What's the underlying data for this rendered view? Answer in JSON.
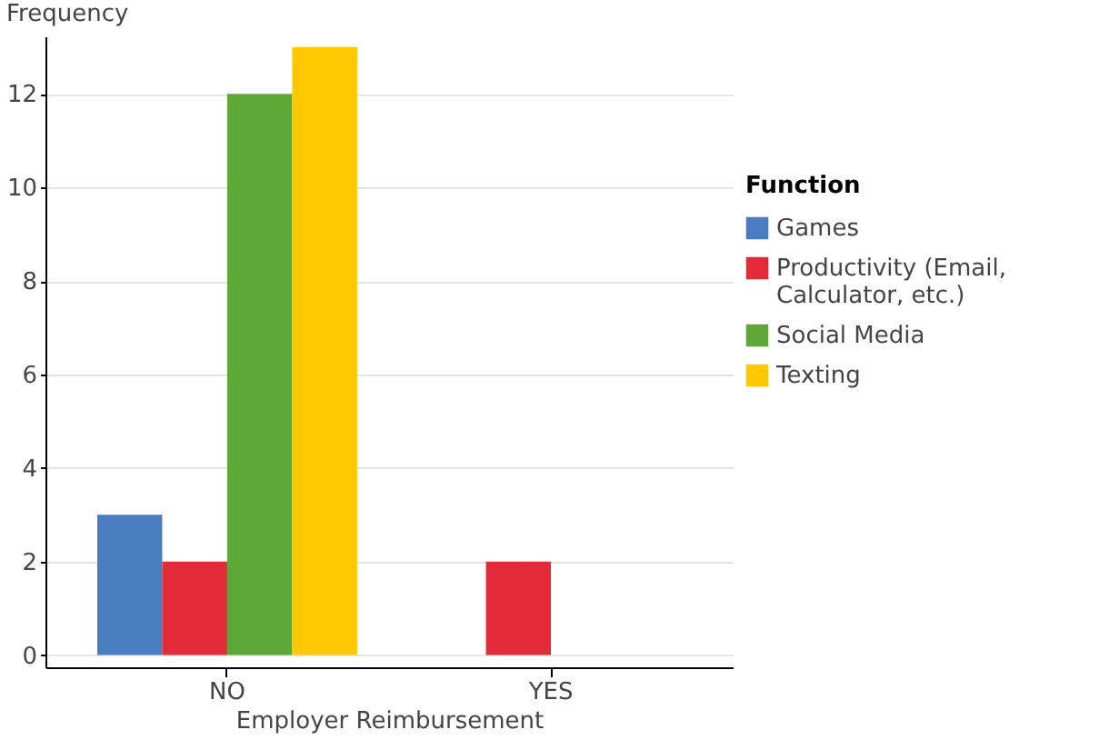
{
  "chart_data": {
    "type": "bar",
    "xlabel": "Employer Reimbursement",
    "ylabel": "Frequency",
    "legend_title": "Function",
    "categories": [
      "NO",
      "YES"
    ],
    "series": [
      {
        "name": "Games",
        "color": "#4a7cc2",
        "values": [
          3,
          null
        ]
      },
      {
        "name": "Productivity (Email, Calculator, etc.)",
        "color": "#e22a38",
        "values": [
          2,
          2
        ]
      },
      {
        "name": "Social Media",
        "color": "#5fa736",
        "values": [
          12,
          null
        ]
      },
      {
        "name": "Texting",
        "color": "#ffc800",
        "values": [
          13,
          null
        ]
      }
    ],
    "ylim": [
      -0.26,
      13.23
    ],
    "yticks": [
      0,
      2,
      4,
      6,
      8,
      10,
      12
    ],
    "grid": "y",
    "legend": "right"
  }
}
